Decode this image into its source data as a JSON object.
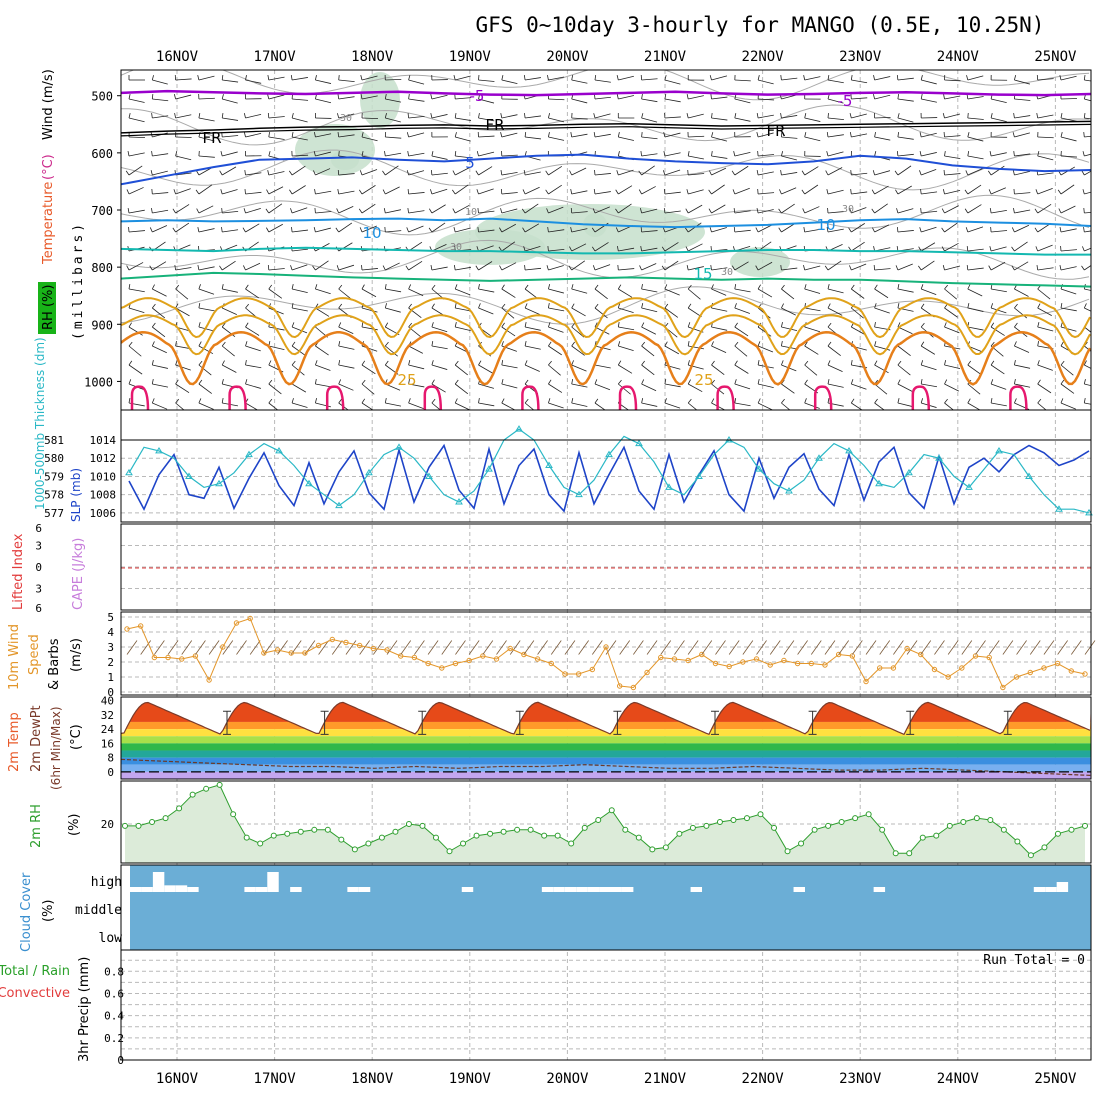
{
  "title": "GFS 0~10day 3-hourly for MANGO (0.5E, 10.25N)",
  "colors": {
    "wind_500": "#9900cc",
    "wind_550": "#000000",
    "t600": "#1f4fd6",
    "t700": "#1c8fe0",
    "t750": "#13b8b0",
    "t800": "#17b27a",
    "t850": "#e0a21a",
    "t900": "#e67f1a",
    "t950": "#e6186e",
    "rh": "#c6dfcb",
    "slp": "#1e44c8",
    "thick": "#2ab8c6",
    "wind10": "#e3962a",
    "rh2m": "#2e9e2e",
    "cloud": "#6baed6"
  },
  "chart_data": [
    {
      "type": "line",
      "panel": "upper-air",
      "x_dates": [
        "16NOV",
        "17NOV",
        "18NOV",
        "19NOV",
        "20NOV",
        "21NOV",
        "22NOV",
        "23NOV",
        "24NOV",
        "25NOV"
      ],
      "y_ticks": [
        500,
        600,
        700,
        800,
        900,
        1000
      ],
      "ylim": [
        1050,
        455
      ],
      "ylabel_parts": [
        "RH (%)",
        "Temperature",
        "(°C)",
        "Wind (m/s)",
        "(millibars)"
      ],
      "series": [
        {
          "name": "-5",
          "level": [
            495,
            492,
            494,
            496,
            497,
            495,
            493,
            496,
            498,
            499,
            497,
            495,
            493,
            496,
            498,
            497,
            495,
            494,
            496,
            498,
            499,
            497
          ]
        },
        {
          "name": "FR",
          "level": [
            565,
            562,
            560,
            557,
            555,
            554,
            552,
            551,
            553,
            552,
            550,
            549,
            551,
            553,
            552,
            551,
            550,
            549,
            548,
            547,
            546,
            545
          ]
        },
        {
          "name": "5",
          "level": [
            655,
            640,
            625,
            612,
            610,
            608,
            612,
            615,
            610,
            605,
            603,
            610,
            615,
            618,
            620,
            615,
            605,
            610,
            622,
            628,
            632,
            630
          ]
        },
        {
          "name": "10",
          "level": [
            720,
            718,
            720,
            719,
            718,
            716,
            715,
            718,
            715,
            720,
            725,
            728,
            730,
            728,
            726,
            722,
            718,
            716,
            720,
            722,
            724,
            728
          ]
        },
        {
          "name": "15",
          "level": [
            768,
            770,
            772,
            768,
            766,
            768,
            770,
            772,
            772,
            774,
            776,
            776,
            774,
            772,
            770,
            770,
            772,
            772,
            774,
            776,
            778,
            778
          ]
        },
        {
          "name": "20",
          "level": [
            820,
            815,
            810,
            812,
            815,
            818,
            820,
            822,
            824,
            822,
            820,
            818,
            820,
            822,
            820,
            822,
            822,
            825,
            828,
            830,
            832,
            834
          ]
        }
      ],
      "labels": [
        "-5",
        "-5",
        "FR",
        "FR",
        "-5",
        "10",
        "10",
        "15",
        "25",
        "25",
        "30",
        "30",
        "10",
        "30",
        "30"
      ]
    },
    {
      "type": "line",
      "panel": "slp-thickness",
      "y_left_ticks": [
        577,
        578,
        579,
        580,
        581
      ],
      "y_right_ticks": [
        1006,
        1008,
        1010,
        1012,
        1014
      ],
      "ylabel_left": "1000-500mb Thickness (dm)",
      "ylabel_right": "SLP (mb)",
      "series": [
        {
          "name": "SLP",
          "values": [
            1009.5,
            1006.4,
            1010.2,
            1012.4,
            1008.0,
            1007.6,
            1011.0,
            1006.5,
            1009.8,
            1012.6,
            1009.0,
            1006.8,
            1011.5,
            1007.0,
            1010.5,
            1012.8,
            1008.2,
            1006.4,
            1012.9,
            1007.2,
            1011.0,
            1013.4,
            1008.5,
            1006.5,
            1013.0,
            1007.0,
            1011.2,
            1013.0,
            1008.0,
            1006.2,
            1012.6,
            1007.0,
            1010.2,
            1013.2,
            1008.4,
            1006.4,
            1012.4,
            1007.2,
            1010.2,
            1012.8,
            1008.0,
            1006.2,
            1012.0,
            1007.6,
            1011.0,
            1012.5,
            1008.6,
            1006.8,
            1012.4,
            1007.4,
            1011.6,
            1013.2,
            1008.2,
            1006.5,
            1012.2,
            1007.0,
            1011.0,
            1012.0,
            1010.5,
            1012.4,
            1013.4,
            1012.6,
            1011.2,
            1011.8,
            1012.8
          ]
        },
        {
          "name": "Thickness",
          "values": [
            579.2,
            580.6,
            580.4,
            580.0,
            579.0,
            578.4,
            578.6,
            579.2,
            580.2,
            580.8,
            580.4,
            579.6,
            578.6,
            578.0,
            577.4,
            578.0,
            579.2,
            580.2,
            580.6,
            580.0,
            579.0,
            578.0,
            577.6,
            578.2,
            579.4,
            581.0,
            581.6,
            581.0,
            579.6,
            578.4,
            578.0,
            578.8,
            580.2,
            581.2,
            580.8,
            579.8,
            578.4,
            578.0,
            579.0,
            580.2,
            581.0,
            580.6,
            579.4,
            578.6,
            578.2,
            578.8,
            580.0,
            580.8,
            580.4,
            579.6,
            578.6,
            578.4,
            579.2,
            580.2,
            580.0,
            579.0,
            578.4,
            579.4,
            580.4,
            580.2,
            579.0,
            578.0,
            577.2,
            577.2,
            577.0
          ]
        }
      ]
    },
    {
      "type": "line",
      "panel": "stability",
      "y_ticks": [
        "6",
        "3",
        "0",
        "3",
        "6"
      ],
      "ylabel_left": "Lifted Index",
      "ylabel_right": "CAPE (J/kg)"
    },
    {
      "type": "line",
      "panel": "wind10m",
      "y_ticks": [
        0,
        1,
        2,
        3,
        4,
        5
      ],
      "ylim": [
        0,
        5
      ],
      "ylabel": [
        "10m Wind",
        "Speed",
        "& Barbs",
        "(m/s)"
      ],
      "series": [
        {
          "name": "10m Wind Speed",
          "values": [
            4.2,
            4.4,
            2.3,
            2.3,
            2.2,
            2.4,
            0.8,
            3.0,
            4.6,
            4.9,
            2.6,
            2.8,
            2.6,
            2.6,
            3.1,
            3.5,
            3.3,
            3.1,
            2.9,
            2.8,
            2.4,
            2.3,
            1.9,
            1.6,
            1.9,
            2.1,
            2.4,
            2.2,
            2.9,
            2.5,
            2.2,
            1.9,
            1.2,
            1.2,
            1.5,
            3.0,
            0.4,
            0.3,
            1.3,
            2.3,
            2.2,
            2.1,
            2.5,
            1.9,
            1.7,
            2.0,
            2.2,
            1.8,
            2.1,
            1.9,
            1.9,
            1.8,
            2.5,
            2.4,
            0.7,
            1.6,
            1.6,
            2.9,
            2.5,
            1.5,
            1.0,
            1.6,
            2.4,
            2.3,
            0.3,
            1.0,
            1.3,
            1.6,
            1.9,
            1.4,
            1.2
          ]
        }
      ]
    },
    {
      "type": "area",
      "panel": "temperature",
      "y_ticks": [
        0,
        8,
        16,
        24,
        32,
        40
      ],
      "ylim": [
        -4,
        42
      ],
      "ylabel": [
        "2m Temp",
        "2m DewPt",
        "(6hr Min/Max)",
        "(°C)"
      ],
      "series": [
        {
          "name": "Max",
          "values": [
            39,
            39,
            39,
            39,
            39,
            39,
            39,
            39,
            39,
            39
          ]
        },
        {
          "name": "Min",
          "values": [
            21,
            21,
            21,
            21,
            21,
            21,
            21,
            21,
            21,
            21
          ]
        },
        {
          "name": "DewPt",
          "values": [
            7,
            6,
            5,
            4,
            3,
            3,
            2,
            3,
            2,
            3,
            3,
            4,
            3,
            2,
            2,
            3,
            2,
            1,
            1,
            2,
            1,
            0,
            -1,
            -2
          ]
        }
      ]
    },
    {
      "type": "area",
      "panel": "rh2m",
      "y_ticks": [
        20
      ],
      "ylabel": [
        "2m RH",
        "(%)"
      ],
      "series": [
        {
          "name": "2m RH",
          "values": [
            19,
            19,
            21,
            23,
            28,
            35,
            38,
            40,
            25,
            13,
            10,
            14,
            15,
            16,
            17,
            17,
            12,
            7,
            10,
            13,
            16,
            20,
            19,
            13,
            6,
            10,
            14,
            15,
            16,
            17,
            17,
            14,
            14,
            10,
            18,
            22,
            27,
            17,
            13,
            7,
            8,
            15,
            18,
            19,
            21,
            22,
            23,
            25,
            18,
            6,
            10,
            17,
            19,
            21,
            23,
            25,
            17,
            5,
            5,
            13,
            14,
            19,
            21,
            23,
            22,
            17,
            11,
            4,
            8,
            15,
            17,
            19
          ]
        }
      ]
    },
    {
      "type": "bar",
      "panel": "cloud",
      "y_ticks": [
        "high",
        "middle",
        "low"
      ],
      "ylabel": [
        "Cloud Cover",
        "(%)"
      ],
      "series": [
        {
          "name": "high",
          "values": [
            15,
            15,
            60,
            20,
            20,
            15,
            0,
            0,
            0,
            0,
            15,
            15,
            60,
            0,
            15,
            0,
            0,
            0,
            0,
            15,
            15,
            0,
            0,
            0,
            0,
            0,
            0,
            0,
            0,
            15,
            0,
            0,
            0,
            0,
            0,
            0,
            15,
            15,
            15,
            15,
            15,
            15,
            15,
            15,
            0,
            0,
            0,
            0,
            0,
            15,
            0,
            0,
            0,
            0,
            0,
            0,
            0,
            0,
            15,
            0,
            0,
            0,
            0,
            0,
            0,
            15,
            0,
            0,
            0,
            0,
            0,
            0,
            0,
            0,
            0,
            0,
            0,
            0,
            0,
            15,
            15,
            30,
            0,
            0
          ]
        }
      ]
    },
    {
      "type": "bar",
      "panel": "precip",
      "y_ticks": [
        0,
        0.2,
        0.4,
        0.6,
        0.8
      ],
      "ylim": [
        0,
        1
      ],
      "ylabel_parts": [
        "Total / Rain",
        "Convective",
        "3hr Precip (mm)"
      ],
      "note": "Run Total = 0",
      "values": []
    }
  ]
}
